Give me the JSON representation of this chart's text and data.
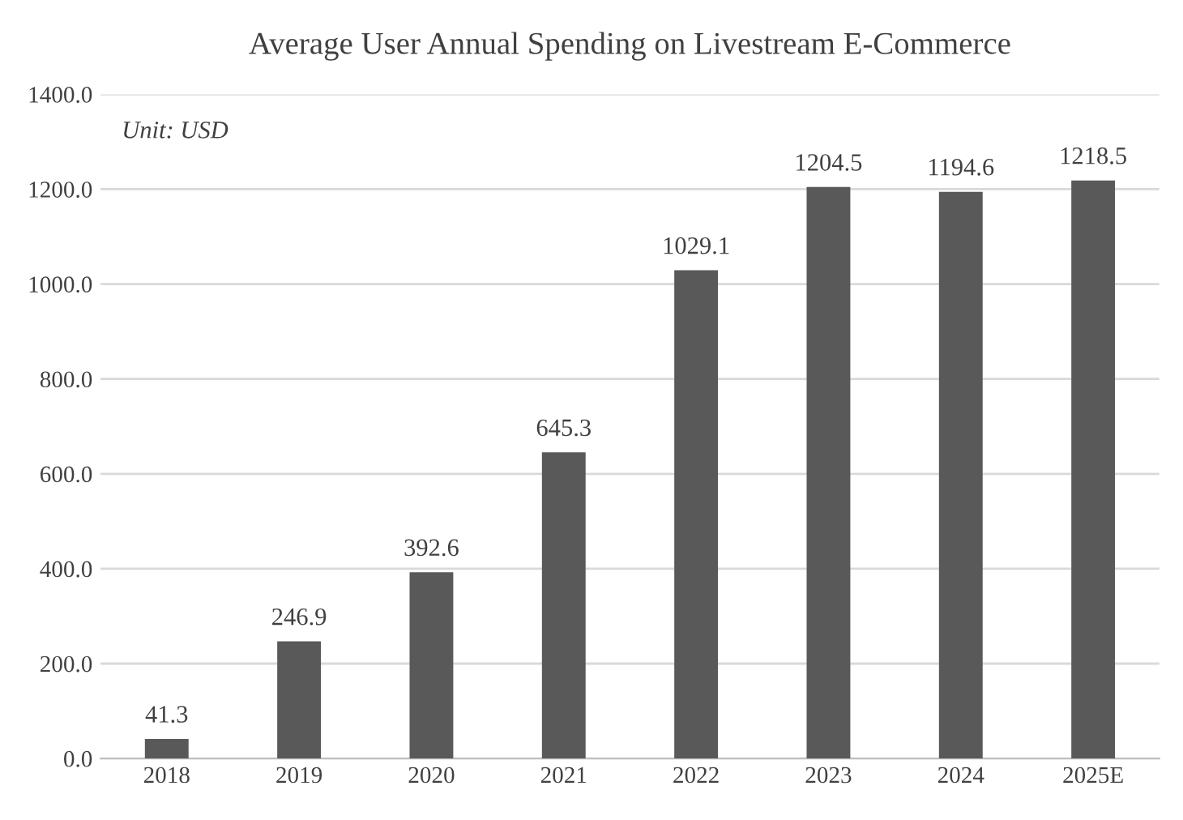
{
  "chart_data": {
    "type": "bar",
    "title": "Average User Annual Spending on Livestream E-Commerce",
    "categories": [
      "2018",
      "2019",
      "2020",
      "2021",
      "2022",
      "2023",
      "2024",
      "2025E"
    ],
    "values": [
      41.3,
      246.9,
      392.6,
      645.3,
      1029.1,
      1204.5,
      1194.6,
      1218.5
    ],
    "color": "#595959",
    "ylim": [
      0,
      1400
    ],
    "yticks": [
      {
        "value": 0,
        "label": "0.0"
      },
      {
        "value": 200,
        "label": "200.0"
      },
      {
        "value": 400,
        "label": "400.0"
      },
      {
        "value": 600,
        "label": "600.0"
      },
      {
        "value": 800,
        "label": "800.0"
      },
      {
        "value": 1000,
        "label": "1000.0"
      },
      {
        "value": 1200,
        "label": "1200.0"
      },
      {
        "value": 1400,
        "label": "1400.0"
      }
    ],
    "grid": "y",
    "data_labels": true,
    "annotations": [
      "Unit: USD"
    ]
  }
}
